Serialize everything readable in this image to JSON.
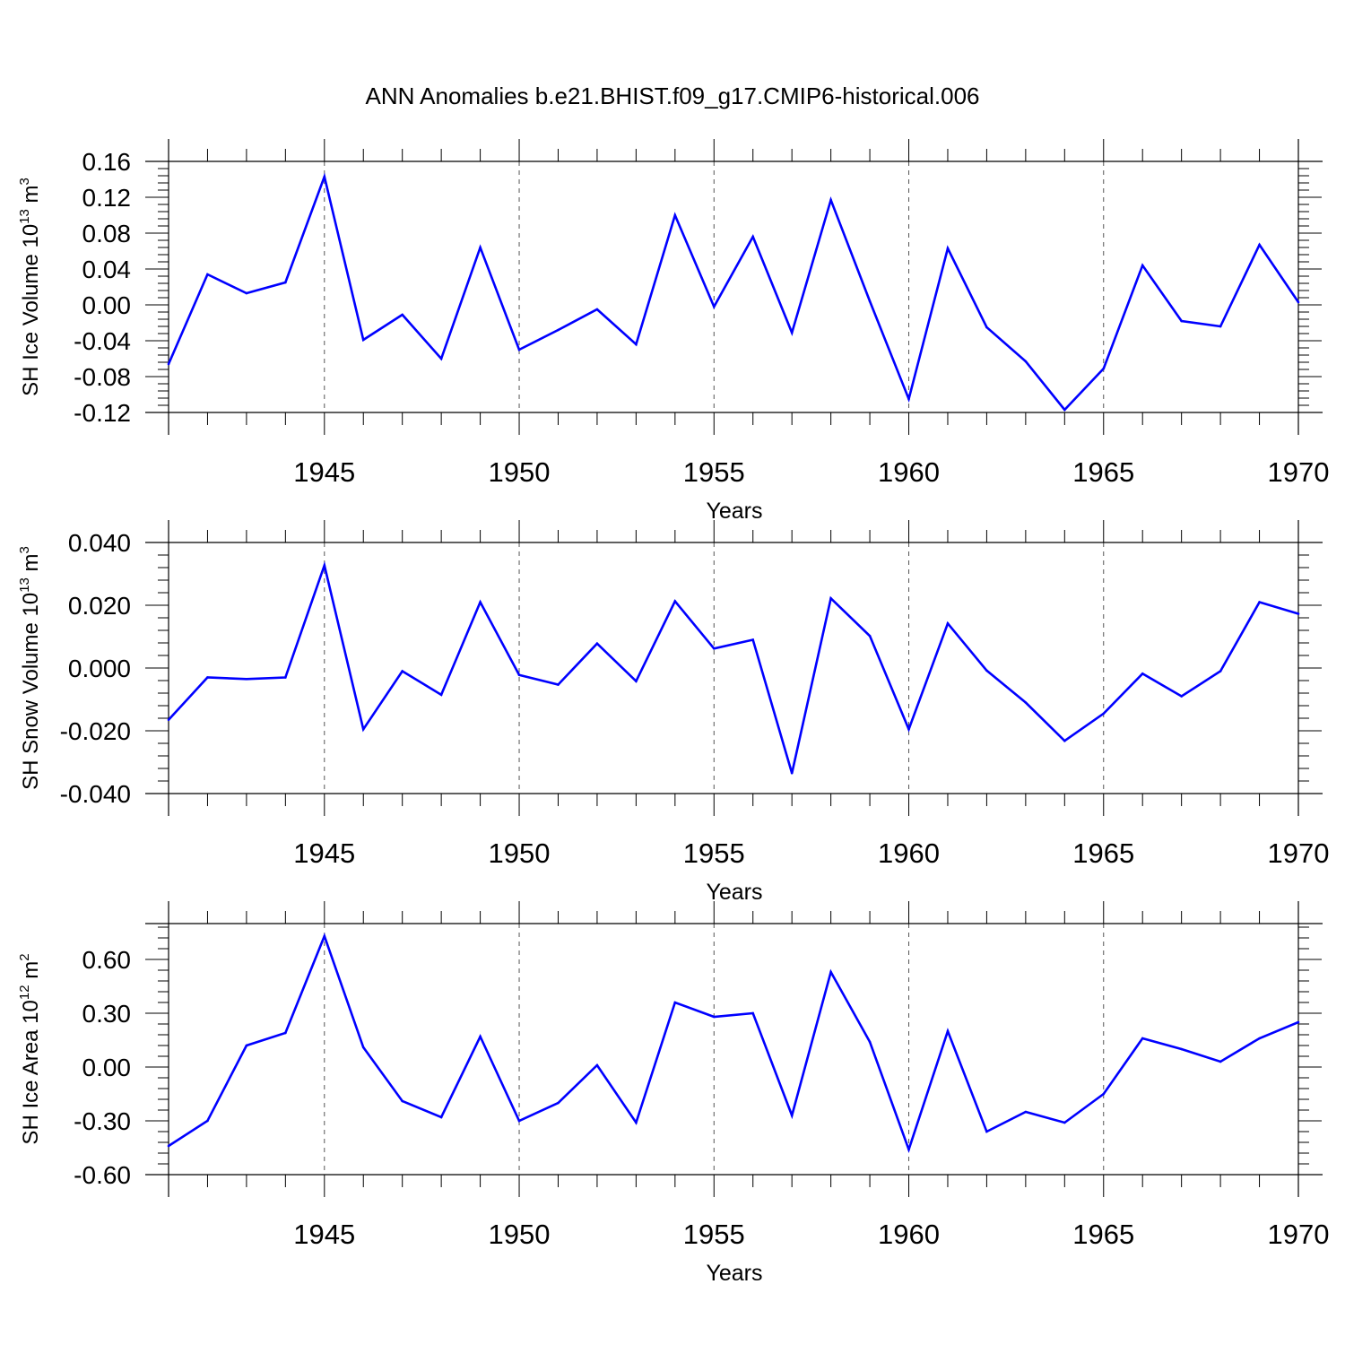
{
  "title": "ANN Anomalies b.e21.BHIST.f09_g17.CMIP6-historical.006",
  "colors": {
    "series": "#0000ff",
    "axes": "#000000",
    "grid": "#555555"
  },
  "chart_data": [
    {
      "type": "line",
      "xlabel": "Years",
      "ylabel_text": "SH Ice Volume 10",
      "ylabel_exp": "13",
      "ylabel_unit": " m",
      "ylabel_unit_exp": "3",
      "x": [
        1941,
        1942,
        1943,
        1944,
        1945,
        1946,
        1947,
        1948,
        1949,
        1950,
        1951,
        1952,
        1953,
        1954,
        1955,
        1956,
        1957,
        1958,
        1959,
        1960,
        1961,
        1962,
        1963,
        1964,
        1965,
        1966,
        1967,
        1968,
        1969,
        1970
      ],
      "values": [
        -0.066,
        0.034,
        0.013,
        0.025,
        0.143,
        -0.039,
        -0.011,
        -0.06,
        0.064,
        -0.05,
        -0.028,
        -0.005,
        -0.044,
        0.1,
        -0.002,
        0.076,
        -0.031,
        0.117,
        0.004,
        -0.105,
        0.063,
        -0.025,
        -0.063,
        -0.117,
        -0.071,
        0.044,
        -0.018,
        -0.024,
        0.067,
        0.003
      ],
      "ylim": [
        -0.12,
        0.16
      ],
      "yticks": [
        "-0.12",
        "-0.08",
        "-0.04",
        "0.00",
        "0.04",
        "0.08",
        "0.12",
        "0.16"
      ],
      "xlim": [
        1941,
        1970
      ],
      "xticks": [
        "1945",
        "1950",
        "1955",
        "1960",
        "1965",
        "1970"
      ]
    },
    {
      "type": "line",
      "xlabel": "Years",
      "ylabel_text": "SH Snow Volume 10",
      "ylabel_exp": "13",
      "ylabel_unit": " m",
      "ylabel_unit_exp": "3",
      "x": [
        1941,
        1942,
        1943,
        1944,
        1945,
        1946,
        1947,
        1948,
        1949,
        1950,
        1951,
        1952,
        1953,
        1954,
        1955,
        1956,
        1957,
        1958,
        1959,
        1960,
        1961,
        1962,
        1963,
        1964,
        1965,
        1966,
        1967,
        1968,
        1969,
        1970
      ],
      "values": [
        -0.0165,
        -0.003,
        -0.0035,
        -0.003,
        0.0327,
        -0.0195,
        -0.001,
        -0.0085,
        0.021,
        -0.0022,
        -0.0053,
        0.0078,
        -0.0042,
        0.0213,
        0.0062,
        0.009,
        -0.0335,
        0.0222,
        0.0102,
        -0.0195,
        0.0142,
        -0.0008,
        -0.011,
        -0.0232,
        -0.0145,
        -0.0018,
        -0.009,
        -0.001,
        0.021,
        0.0173
      ],
      "ylim": [
        -0.04,
        0.04
      ],
      "yticks": [
        "-0.040",
        "-0.020",
        "0.000",
        "0.020",
        "0.040"
      ],
      "xlim": [
        1941,
        1970
      ],
      "xticks": [
        "1945",
        "1950",
        "1955",
        "1960",
        "1965",
        "1970"
      ]
    },
    {
      "type": "line",
      "xlabel": "Years",
      "ylabel_text": "SH Ice Area 10",
      "ylabel_exp": "12",
      "ylabel_unit": " m",
      "ylabel_unit_exp": "2",
      "x": [
        1941,
        1942,
        1943,
        1944,
        1945,
        1946,
        1947,
        1948,
        1949,
        1950,
        1951,
        1952,
        1953,
        1954,
        1955,
        1956,
        1957,
        1958,
        1959,
        1960,
        1961,
        1962,
        1963,
        1964,
        1965,
        1966,
        1967,
        1968,
        1969,
        1970
      ],
      "values": [
        -0.44,
        -0.3,
        0.12,
        0.19,
        0.73,
        0.11,
        -0.19,
        -0.28,
        0.17,
        -0.3,
        -0.2,
        0.01,
        -0.31,
        0.36,
        0.28,
        0.3,
        -0.27,
        0.53,
        0.14,
        -0.46,
        0.2,
        -0.36,
        -0.25,
        -0.31,
        -0.15,
        0.16,
        0.1,
        0.03,
        0.16,
        0.25
      ],
      "ylim": [
        -0.6,
        0.8
      ],
      "yticks": [
        "-0.60",
        "-0.30",
        "0.00",
        "0.30",
        "0.60"
      ],
      "xlim": [
        1941,
        1970
      ],
      "xticks": [
        "1945",
        "1950",
        "1955",
        "1960",
        "1965",
        "1970"
      ]
    }
  ]
}
